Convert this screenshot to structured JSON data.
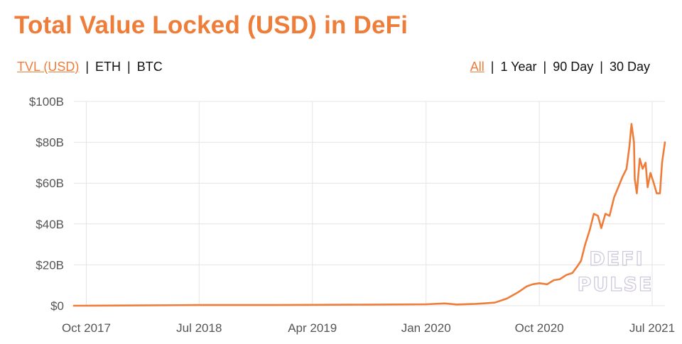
{
  "title": "Total Value Locked (USD) in DeFi",
  "colors": {
    "accent": "#ee7d3a",
    "grid": "#e4e4e4",
    "text": "#111111"
  },
  "toolbar": {
    "metrics": [
      {
        "label": "TVL (USD)",
        "active": true
      },
      {
        "label": "ETH",
        "active": false
      },
      {
        "label": "BTC",
        "active": false
      }
    ],
    "ranges": [
      {
        "label": "All",
        "active": true
      },
      {
        "label": "1 Year",
        "active": false
      },
      {
        "label": "90 Day",
        "active": false
      },
      {
        "label": "30 Day",
        "active": false
      }
    ]
  },
  "watermark": [
    "DEFI",
    "PULSE"
  ],
  "chart_data": {
    "type": "line",
    "title": "Total Value Locked (USD) in DeFi",
    "xlabel": "",
    "ylabel": "",
    "x_ticks": [
      {
        "label": "Oct 2017",
        "date": "2017-10-01"
      },
      {
        "label": "Jul 2018",
        "date": "2018-07-01"
      },
      {
        "label": "Apr 2019",
        "date": "2019-04-01"
      },
      {
        "label": "Jan 2020",
        "date": "2020-01-01"
      },
      {
        "label": "Oct 2020",
        "date": "2020-10-01"
      },
      {
        "label": "Jul 2021",
        "date": "2021-07-01"
      }
    ],
    "y_ticks": [
      {
        "label": "$0",
        "value": 0
      },
      {
        "label": "$20B",
        "value": 20
      },
      {
        "label": "$40B",
        "value": 40
      },
      {
        "label": "$60B",
        "value": 60
      },
      {
        "label": "$80B",
        "value": 80
      },
      {
        "label": "$100B",
        "value": 100
      }
    ],
    "y_unit": "USD billions",
    "ylim": [
      0,
      100
    ],
    "xlim": [
      "2017-09-01",
      "2021-08-01"
    ],
    "grid": true,
    "series": [
      {
        "values": [
          [
            "2017-09-01",
            0.0
          ],
          [
            "2018-01-01",
            0.1
          ],
          [
            "2018-07-01",
            0.3
          ],
          [
            "2019-01-01",
            0.3
          ],
          [
            "2019-07-01",
            0.5
          ],
          [
            "2020-01-01",
            0.7
          ],
          [
            "2020-02-15",
            1.1
          ],
          [
            "2020-03-15",
            0.6
          ],
          [
            "2020-05-01",
            0.9
          ],
          [
            "2020-06-15",
            1.5
          ],
          [
            "2020-07-15",
            3.5
          ],
          [
            "2020-08-10",
            6.5
          ],
          [
            "2020-09-01",
            9.5
          ],
          [
            "2020-09-15",
            10.5
          ],
          [
            "2020-10-01",
            11.0
          ],
          [
            "2020-10-20",
            10.5
          ],
          [
            "2020-11-05",
            12.5
          ],
          [
            "2020-11-20",
            13.0
          ],
          [
            "2020-12-05",
            15.0
          ],
          [
            "2020-12-20",
            16.0
          ],
          [
            "2020-12-31",
            19.0
          ],
          [
            "2021-01-10",
            22.0
          ],
          [
            "2021-01-20",
            30.0
          ],
          [
            "2021-01-31",
            37.0
          ],
          [
            "2021-02-10",
            45.0
          ],
          [
            "2021-02-20",
            44.0
          ],
          [
            "2021-02-28",
            38.0
          ],
          [
            "2021-03-10",
            45.0
          ],
          [
            "2021-03-20",
            44.0
          ],
          [
            "2021-03-31",
            53.0
          ],
          [
            "2021-04-10",
            58.0
          ],
          [
            "2021-04-20",
            63.0
          ],
          [
            "2021-04-30",
            67.0
          ],
          [
            "2021-05-07",
            78.0
          ],
          [
            "2021-05-12",
            89.0
          ],
          [
            "2021-05-18",
            80.0
          ],
          [
            "2021-05-20",
            62.0
          ],
          [
            "2021-05-25",
            55.0
          ],
          [
            "2021-06-01",
            72.0
          ],
          [
            "2021-06-08",
            67.0
          ],
          [
            "2021-06-15",
            70.0
          ],
          [
            "2021-06-20",
            58.0
          ],
          [
            "2021-06-27",
            65.0
          ],
          [
            "2021-07-05",
            60.0
          ],
          [
            "2021-07-12",
            55.0
          ],
          [
            "2021-07-20",
            55.0
          ],
          [
            "2021-07-25",
            70.0
          ],
          [
            "2021-08-01",
            80.0
          ]
        ]
      }
    ]
  }
}
